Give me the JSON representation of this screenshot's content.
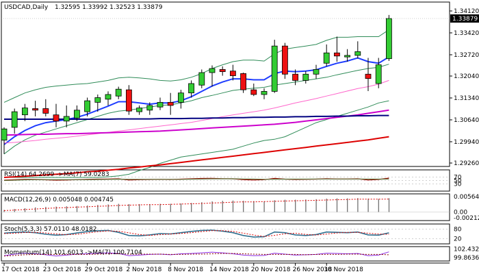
{
  "chart_data": [
    {
      "type": "candlestick",
      "panel": "price",
      "header": {
        "symbol_label": "USDCAD,Daily",
        "ohlc_text": "1.32595 1.33992 1.32523 1.33879"
      },
      "current_price_label": "1.33879",
      "y_ticks": [
        "1.34120",
        "1.33420",
        "1.32720",
        "1.32040",
        "1.31340",
        "1.30640",
        "1.29940",
        "1.29260"
      ],
      "y_tick_values": [
        1.3412,
        1.3342,
        1.3272,
        1.3204,
        1.3134,
        1.3064,
        1.2994,
        1.2926
      ],
      "ylim": [
        1.2926,
        1.3412
      ],
      "x_tick_labels": [
        "17 Oct 2018",
        "23 Oct 2018",
        "29 Oct 2018",
        "2 Nov 2018",
        "8 Nov 2018",
        "14 Nov 2018",
        "20 Nov 2018",
        "26 Nov 2018",
        "30 Nov 2018"
      ],
      "x_tick_bar_index": [
        0,
        4,
        8,
        12,
        16,
        20,
        24,
        28,
        31
      ],
      "candles": [
        {
          "o": 1.2999,
          "h": 1.304,
          "l": 1.2955,
          "c": 1.3035
        },
        {
          "o": 1.304,
          "h": 1.31,
          "l": 1.302,
          "c": 1.309
        },
        {
          "o": 1.308,
          "h": 1.3115,
          "l": 1.306,
          "c": 1.3102
        },
        {
          "o": 1.31,
          "h": 1.3125,
          "l": 1.3075,
          "c": 1.3095
        },
        {
          "o": 1.31,
          "h": 1.313,
          "l": 1.3075,
          "c": 1.3085
        },
        {
          "o": 1.308,
          "h": 1.3115,
          "l": 1.304,
          "c": 1.306
        },
        {
          "o": 1.306,
          "h": 1.311,
          "l": 1.304,
          "c": 1.3075
        },
        {
          "o": 1.307,
          "h": 1.311,
          "l": 1.306,
          "c": 1.3095
        },
        {
          "o": 1.309,
          "h": 1.3135,
          "l": 1.3075,
          "c": 1.3125
        },
        {
          "o": 1.312,
          "h": 1.3145,
          "l": 1.309,
          "c": 1.3135
        },
        {
          "o": 1.313,
          "h": 1.3155,
          "l": 1.311,
          "c": 1.3145
        },
        {
          "o": 1.314,
          "h": 1.317,
          "l": 1.313,
          "c": 1.3162
        },
        {
          "o": 1.316,
          "h": 1.3175,
          "l": 1.308,
          "c": 1.3092
        },
        {
          "o": 1.309,
          "h": 1.311,
          "l": 1.308,
          "c": 1.3102
        },
        {
          "o": 1.3095,
          "h": 1.312,
          "l": 1.308,
          "c": 1.311
        },
        {
          "o": 1.3105,
          "h": 1.3135,
          "l": 1.3095,
          "c": 1.312
        },
        {
          "o": 1.312,
          "h": 1.315,
          "l": 1.308,
          "c": 1.311
        },
        {
          "o": 1.312,
          "h": 1.316,
          "l": 1.31,
          "c": 1.315
        },
        {
          "o": 1.315,
          "h": 1.319,
          "l": 1.3135,
          "c": 1.318
        },
        {
          "o": 1.3175,
          "h": 1.3225,
          "l": 1.3165,
          "c": 1.3215
        },
        {
          "o": 1.3215,
          "h": 1.3238,
          "l": 1.317,
          "c": 1.3228
        },
        {
          "o": 1.3225,
          "h": 1.3235,
          "l": 1.3205,
          "c": 1.3218
        },
        {
          "o": 1.322,
          "h": 1.324,
          "l": 1.319,
          "c": 1.3205
        },
        {
          "o": 1.3212,
          "h": 1.3215,
          "l": 1.315,
          "c": 1.316
        },
        {
          "o": 1.316,
          "h": 1.318,
          "l": 1.314,
          "c": 1.3145
        },
        {
          "o": 1.3145,
          "h": 1.3165,
          "l": 1.313,
          "c": 1.3155
        },
        {
          "o": 1.3155,
          "h": 1.332,
          "l": 1.315,
          "c": 1.33
        },
        {
          "o": 1.33,
          "h": 1.331,
          "l": 1.3195,
          "c": 1.321
        },
        {
          "o": 1.321,
          "h": 1.3225,
          "l": 1.3175,
          "c": 1.319
        },
        {
          "o": 1.319,
          "h": 1.322,
          "l": 1.318,
          "c": 1.321
        },
        {
          "o": 1.321,
          "h": 1.324,
          "l": 1.3195,
          "c": 1.3225
        },
        {
          "o": 1.3245,
          "h": 1.3305,
          "l": 1.3235,
          "c": 1.3278
        },
        {
          "o": 1.3278,
          "h": 1.333,
          "l": 1.325,
          "c": 1.3268
        },
        {
          "o": 1.3265,
          "h": 1.329,
          "l": 1.325,
          "c": 1.327
        },
        {
          "o": 1.327,
          "h": 1.3315,
          "l": 1.326,
          "c": 1.3282
        },
        {
          "o": 1.321,
          "h": 1.3262,
          "l": 1.3156,
          "c": 1.3196
        },
        {
          "o": 1.318,
          "h": 1.3262,
          "l": 1.3165,
          "c": 1.324
        },
        {
          "o": 1.32595,
          "h": 1.33992,
          "l": 1.32523,
          "c": 1.33879
        }
      ],
      "overlays": [
        {
          "name": "bollinger_upper",
          "color": "#2e8b57",
          "values": [
            1.312,
            1.3135,
            1.315,
            1.316,
            1.3168,
            1.3172,
            1.3175,
            1.3178,
            1.318,
            1.3185,
            1.319,
            1.3198,
            1.32,
            1.3198,
            1.3195,
            1.319,
            1.3188,
            1.3192,
            1.32,
            1.3212,
            1.3228,
            1.324,
            1.325,
            1.3255,
            1.3255,
            1.3252,
            1.3275,
            1.329,
            1.3295,
            1.33,
            1.3305,
            1.3318,
            1.3328,
            1.3328,
            1.333,
            1.333,
            1.333,
            1.3352
          ]
        },
        {
          "name": "bollinger_middle",
          "color": "#2e8b57",
          "values": [
            1.2955,
            1.298,
            1.3,
            1.3015,
            1.3025,
            1.3035,
            1.3045,
            1.3055,
            1.3065,
            1.3075,
            1.3085,
            1.3092,
            1.3095,
            1.31,
            1.3105,
            1.311,
            1.3112,
            1.3118,
            1.3125,
            1.3135,
            1.3142,
            1.315,
            1.3158,
            1.3162,
            1.3165,
            1.3168,
            1.3175,
            1.318,
            1.3185,
            1.319,
            1.3195,
            1.32,
            1.3208,
            1.3215,
            1.3222,
            1.3228,
            1.3232,
            1.3242
          ]
        },
        {
          "name": "bollinger_lower",
          "color": "#2e8b57",
          "values": [
            1.288,
            1.288,
            1.288,
            1.288,
            1.288,
            1.288,
            1.288,
            1.288,
            1.288,
            1.288,
            1.2882,
            1.2885,
            1.289,
            1.2902,
            1.2912,
            1.2925,
            1.2935,
            1.2945,
            1.295,
            1.2955,
            1.296,
            1.2965,
            1.297,
            1.298,
            1.299,
            1.2998,
            1.3002,
            1.301,
            1.3025,
            1.304,
            1.3055,
            1.3065,
            1.3075,
            1.3085,
            1.3095,
            1.3105,
            1.3118,
            1.3125
          ]
        },
        {
          "name": "ma_blue",
          "color": "#1e3cff",
          "values": [
            1.2985,
            1.301,
            1.303,
            1.3045,
            1.3055,
            1.306,
            1.3065,
            1.3072,
            1.3082,
            1.3095,
            1.3108,
            1.3122,
            1.3122,
            1.3118,
            1.3114,
            1.3118,
            1.3118,
            1.3125,
            1.3138,
            1.3155,
            1.3172,
            1.3185,
            1.3195,
            1.3195,
            1.3192,
            1.3192,
            1.3212,
            1.322,
            1.3218,
            1.322,
            1.3224,
            1.3235,
            1.3245,
            1.3252,
            1.3262,
            1.325,
            1.3245,
            1.3265
          ]
        },
        {
          "name": "ma_pink",
          "color": "#ff66cc",
          "values": [
            1.299,
            1.2992,
            1.2995,
            1.2998,
            1.3002,
            1.3005,
            1.3008,
            1.3012,
            1.3016,
            1.302,
            1.3024,
            1.3028,
            1.3032,
            1.3036,
            1.304,
            1.3044,
            1.3048,
            1.3052,
            1.3056,
            1.3062,
            1.3068,
            1.3074,
            1.308,
            1.3085,
            1.309,
            1.3095,
            1.3102,
            1.311,
            1.3118,
            1.3125,
            1.3132,
            1.314,
            1.3148,
            1.3156,
            1.3164,
            1.317,
            1.3178,
            1.319
          ]
        },
        {
          "name": "ma_magenta",
          "color": "#cc00cc",
          "values": [
            1.3015,
            1.3016,
            1.3017,
            1.3018,
            1.3018,
            1.3019,
            1.302,
            1.302,
            1.3021,
            1.3022,
            1.3023,
            1.3024,
            1.3025,
            1.3026,
            1.3027,
            1.3028,
            1.303,
            1.3032,
            1.3034,
            1.3036,
            1.3038,
            1.304,
            1.3042,
            1.3044,
            1.3046,
            1.3048,
            1.305,
            1.3053,
            1.3056,
            1.306,
            1.3064,
            1.3068,
            1.3072,
            1.3076,
            1.308,
            1.3085,
            1.309,
            1.3095
          ]
        },
        {
          "name": "ma_navy",
          "color": "#000080",
          "values": [
            1.3066,
            1.3066,
            1.3066,
            1.3066,
            1.3066,
            1.3066,
            1.3066,
            1.3066,
            1.3066,
            1.3066,
            1.3066,
            1.3067,
            1.3067,
            1.3067,
            1.3067,
            1.3068,
            1.3068,
            1.3068,
            1.3069,
            1.3069,
            1.307,
            1.307,
            1.3071,
            1.3071,
            1.3072,
            1.3072,
            1.3073,
            1.3073,
            1.3074,
            1.3074,
            1.3075,
            1.3075,
            1.3076,
            1.3076,
            1.3077,
            1.3077,
            1.3078,
            1.3078
          ]
        },
        {
          "name": "ma_red",
          "color": "#dd0000",
          "values": [
            1.288,
            1.2882,
            1.2884,
            1.2886,
            1.2888,
            1.289,
            1.2892,
            1.2895,
            1.2898,
            1.29,
            1.2903,
            1.2906,
            1.291,
            1.2913,
            1.2917,
            1.292,
            1.2924,
            1.2928,
            1.2932,
            1.2936,
            1.294,
            1.2944,
            1.2948,
            1.2952,
            1.2956,
            1.296,
            1.2964,
            1.2968,
            1.2972,
            1.2976,
            1.298,
            1.2984,
            1.2988,
            1.2992,
            1.2996,
            1.3,
            1.3005,
            1.301
          ]
        }
      ]
    },
    {
      "type": "line",
      "panel": "rsi",
      "label": "RSI(14) 64.2699  ->MA(7) 59.0283",
      "y_ticks": [
        "70",
        "50",
        "30"
      ],
      "ylim": [
        0,
        100
      ],
      "series": [
        {
          "name": "RSI(14)",
          "color": "#aa0000",
          "values": [
            52,
            55,
            57,
            56,
            54,
            52,
            53,
            55,
            57,
            58,
            59,
            60,
            53,
            55,
            56,
            57,
            56,
            58,
            60,
            62,
            63,
            61,
            60,
            55,
            53,
            55,
            63,
            58,
            56,
            57,
            58,
            61,
            59,
            59,
            60,
            53,
            56,
            64
          ]
        },
        {
          "name": "MA(7)",
          "color": "#556b2f",
          "values": [
            50,
            52,
            54,
            55,
            55,
            55,
            55,
            55,
            55,
            56,
            57,
            58,
            57,
            57,
            57,
            57,
            57,
            57,
            58,
            59,
            60,
            60,
            60,
            59,
            58,
            57,
            58,
            58,
            58,
            58,
            59,
            59,
            59,
            59,
            59,
            58,
            58,
            59
          ]
        }
      ]
    },
    {
      "type": "bar",
      "panel": "macd",
      "label": "MACD(12,26,9) 0.005048 0.004745",
      "y_ticks": [
        "0.005641",
        "0.00",
        "-0.002127"
      ],
      "ylim": [
        -0.002127,
        0.005641
      ],
      "series": [
        {
          "name": "MACD",
          "values": [
            0.0008,
            0.0011,
            0.0014,
            0.0017,
            0.0019,
            0.002,
            0.0021,
            0.0022,
            0.0024,
            0.0026,
            0.0028,
            0.003,
            0.0029,
            0.0029,
            0.0029,
            0.003,
            0.003,
            0.0031,
            0.0033,
            0.0036,
            0.0039,
            0.0041,
            0.0042,
            0.0041,
            0.004,
            0.0039,
            0.0043,
            0.0045,
            0.0045,
            0.0046,
            0.0047,
            0.0049,
            0.005,
            0.005,
            0.0051,
            0.0049,
            0.0048,
            0.00505
          ]
        },
        {
          "name": "Signal",
          "values": [
            0.0005,
            0.0007,
            0.0009,
            0.0011,
            0.0013,
            0.0015,
            0.0016,
            0.0018,
            0.0019,
            0.0021,
            0.0022,
            0.0024,
            0.0025,
            0.0026,
            0.0027,
            0.0027,
            0.0028,
            0.0029,
            0.003,
            0.0031,
            0.0033,
            0.0034,
            0.0036,
            0.0037,
            0.0037,
            0.0038,
            0.0039,
            0.004,
            0.0041,
            0.0042,
            0.0043,
            0.0044,
            0.0045,
            0.0046,
            0.0047,
            0.0047,
            0.0047,
            0.004745
          ]
        }
      ]
    },
    {
      "type": "line",
      "panel": "stoch",
      "label": "Stoch(5,3,3) 57.0110 48.0182",
      "y_ticks": [
        "80",
        "20"
      ],
      "ylim": [
        0,
        100
      ],
      "series": [
        {
          "name": "%K",
          "color": "#2f6f8f",
          "values": [
            55,
            60,
            62,
            58,
            48,
            42,
            46,
            56,
            65,
            70,
            72,
            60,
            40,
            38,
            44,
            52,
            50,
            58,
            66,
            72,
            74,
            68,
            58,
            40,
            30,
            32,
            62,
            58,
            44,
            40,
            46,
            62,
            60,
            58,
            62,
            44,
            42,
            57
          ]
        },
        {
          "name": "%D",
          "color": "#dd0000",
          "values": [
            52,
            55,
            59,
            60,
            56,
            50,
            45,
            48,
            56,
            64,
            69,
            67,
            57,
            46,
            41,
            45,
            49,
            53,
            58,
            65,
            71,
            71,
            66,
            55,
            43,
            34,
            41,
            51,
            55,
            47,
            43,
            49,
            56,
            60,
            60,
            55,
            49,
            48
          ]
        }
      ]
    },
    {
      "type": "line",
      "panel": "momentum",
      "label": "Momentum(14) 101.6013  ->MA(7) 100.7104",
      "y_ticks": [
        "102.4321",
        "99.8636"
      ],
      "ylim": [
        99.2,
        102.8
      ],
      "series": [
        {
          "name": "Momentum(14)",
          "color": "#8a2be2",
          "values": [
            100.4,
            100.9,
            101.2,
            101.0,
            100.7,
            100.3,
            100.6,
            100.9,
            101.0,
            101.2,
            101.3,
            101.1,
            100.4,
            100.6,
            100.8,
            100.9,
            100.7,
            101.0,
            101.1,
            101.3,
            101.5,
            101.3,
            101.0,
            100.6,
            100.4,
            100.5,
            101.2,
            100.9,
            100.6,
            100.7,
            100.8,
            101.2,
            101.1,
            101.0,
            101.1,
            100.4,
            100.6,
            101.6
          ]
        },
        {
          "name": "MA(7)",
          "color": "#8b0000",
          "values": [
            100.3,
            100.5,
            100.7,
            100.8,
            100.8,
            100.8,
            100.8,
            100.8,
            100.8,
            100.9,
            101.0,
            101.0,
            100.9,
            100.9,
            100.9,
            100.9,
            100.8,
            100.8,
            100.9,
            100.9,
            101.0,
            101.1,
            101.1,
            101.0,
            100.9,
            100.8,
            100.8,
            100.8,
            100.8,
            100.7,
            100.8,
            100.8,
            100.8,
            100.9,
            100.9,
            100.8,
            100.8,
            100.7
          ]
        }
      ]
    }
  ],
  "colors": {
    "bull": "#33cc33",
    "bear": "#ee1111",
    "grid": "#c0c0c0",
    "border": "#000000",
    "price_tag_bg": "#000000",
    "price_tag_text": "#ffffff"
  }
}
